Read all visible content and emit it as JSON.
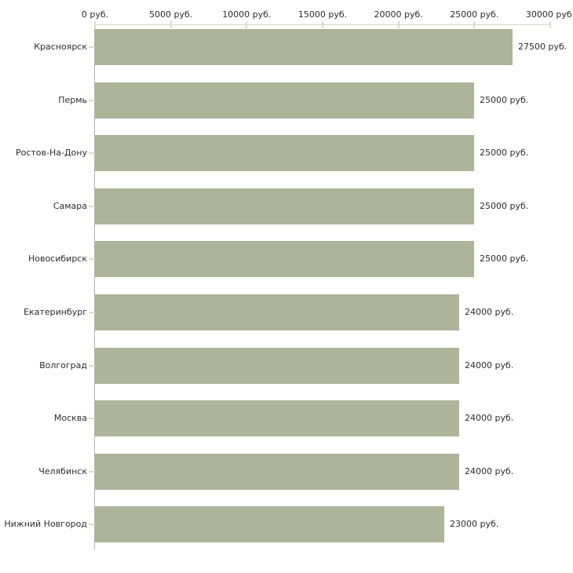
{
  "chart_data": {
    "type": "bar",
    "orientation": "horizontal",
    "title": "",
    "xlabel": "",
    "ylabel": "",
    "unit": "руб.",
    "categories": [
      "Красноярск",
      "Пермь",
      "Ростов-На-Дону",
      "Самара",
      "Новосибирск",
      "Екатеринбург",
      "Волгоград",
      "Москва",
      "Челябинск",
      "Нижний Новгород"
    ],
    "values": [
      27500,
      25000,
      25000,
      25000,
      25000,
      24000,
      24000,
      24000,
      24000,
      23000
    ],
    "value_labels": [
      "27500 руб.",
      "25000 руб.",
      "25000 руб.",
      "25000 руб.",
      "25000 руб.",
      "24000 руб.",
      "24000 руб.",
      "24000 руб.",
      "24000 руб.",
      "23000 руб."
    ],
    "x_axis": {
      "position": "top",
      "min": 0,
      "max": 30000,
      "tick_interval": 5000,
      "tick_labels": [
        "0 руб.",
        "5000 руб.",
        "10000 руб.",
        "15000 руб.",
        "20000 руб.",
        "25000 руб.",
        "30000 руб."
      ]
    },
    "grid": false,
    "legend": false,
    "colors": {
      "bar": "#adb49a",
      "axis_line": "#d6d6d0",
      "tick": "#dadcc2",
      "y_axis_line": "#b3b3b3",
      "text": "#2d2d2d",
      "background": "#ffffff"
    }
  }
}
